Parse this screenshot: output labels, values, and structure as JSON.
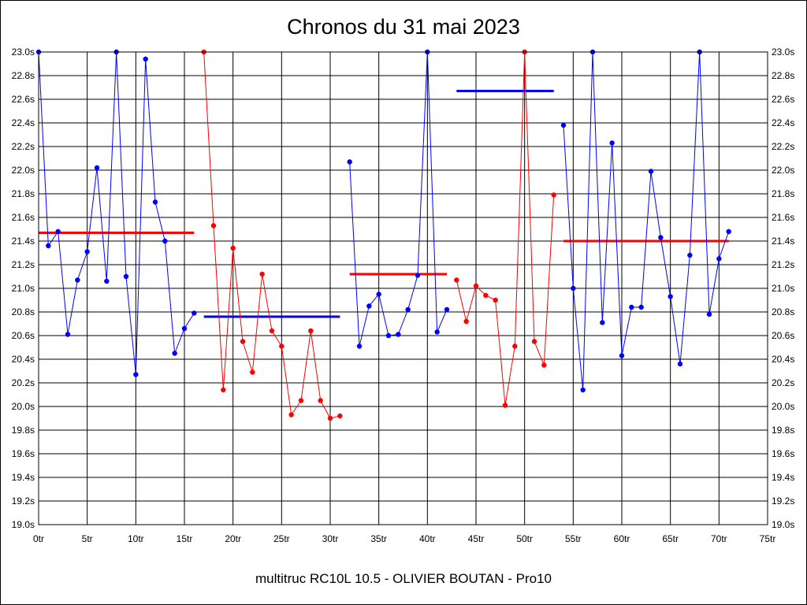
{
  "chart_data": {
    "type": "line",
    "title": "Chronos du 31 mai 2023",
    "footer": "multitruc RC10L 10.5 - OLIVIER BOUTAN - Pro10",
    "x_tick_labels": [
      "0tr",
      "5tr",
      "10tr",
      "15tr",
      "20tr",
      "25tr",
      "30tr",
      "35tr",
      "40tr",
      "45tr",
      "50tr",
      "55tr",
      "60tr",
      "65tr",
      "70tr",
      "75tr"
    ],
    "x_ticks": [
      0,
      5,
      10,
      15,
      20,
      25,
      30,
      35,
      40,
      45,
      50,
      55,
      60,
      65,
      70,
      75
    ],
    "y_tick_labels": [
      "19.0s",
      "19.2s",
      "19.4s",
      "19.6s",
      "19.8s",
      "20.0s",
      "20.2s",
      "20.4s",
      "20.6s",
      "20.8s",
      "21.0s",
      "21.2s",
      "21.4s",
      "21.6s",
      "21.8s",
      "22.0s",
      "22.2s",
      "22.4s",
      "22.6s",
      "22.8s",
      "23.0s"
    ],
    "y_ticks": [
      19.0,
      19.2,
      19.4,
      19.6,
      19.8,
      20.0,
      20.2,
      20.4,
      20.6,
      20.8,
      21.0,
      21.2,
      21.4,
      21.6,
      21.8,
      22.0,
      22.2,
      22.4,
      22.6,
      22.8,
      23.0
    ],
    "xlim": [
      0,
      75
    ],
    "ylim": [
      19.0,
      23.0
    ],
    "grid": true,
    "series": [
      {
        "color": "#0000ff",
        "x": [
          0,
          1,
          2,
          3,
          4,
          5,
          6,
          7,
          8,
          9,
          10,
          11,
          12,
          13,
          14,
          15,
          16
        ],
        "y": [
          23.0,
          21.36,
          21.48,
          20.61,
          21.07,
          21.31,
          22.02,
          21.06,
          23.0,
          21.1,
          20.27,
          22.94,
          21.73,
          21.4,
          20.45,
          20.66,
          20.79
        ],
        "mean": 21.47,
        "mean_color": "#ff0000"
      },
      {
        "color": "#ff0000",
        "x": [
          17,
          18,
          19,
          20,
          21,
          22,
          23,
          24,
          25,
          26,
          27,
          28,
          29,
          30,
          31
        ],
        "y": [
          23.0,
          21.53,
          20.14,
          21.34,
          20.55,
          20.29,
          21.12,
          20.64,
          20.51,
          19.93,
          20.05,
          20.64,
          20.05,
          19.9,
          19.92
        ],
        "mean": 20.76,
        "mean_color": "#0000ff"
      },
      {
        "color": "#0000ff",
        "x": [
          32,
          33,
          34,
          35,
          36,
          37,
          38,
          39,
          40,
          41,
          42
        ],
        "y": [
          22.07,
          20.51,
          20.85,
          20.95,
          20.6,
          20.61,
          20.82,
          21.11,
          23.0,
          20.63,
          20.82
        ],
        "mean": 21.12,
        "mean_color": "#ff0000"
      },
      {
        "color": "#ff0000",
        "x": [
          43,
          44,
          45,
          46,
          47,
          48,
          49,
          50,
          51,
          52,
          53
        ],
        "y": [
          21.07,
          20.72,
          21.02,
          20.94,
          20.9,
          20.01,
          20.51,
          23.0,
          20.55,
          20.35,
          21.79
        ],
        "mean": 22.67,
        "mean_color": "#0000ff"
      },
      {
        "color": "#0000ff",
        "x": [
          54,
          55,
          56,
          57,
          58,
          59,
          60,
          61,
          62,
          63,
          64,
          65,
          66,
          67,
          68,
          69,
          70,
          71
        ],
        "y": [
          22.38,
          21.0,
          20.14,
          23.0,
          20.71,
          22.23,
          20.43,
          20.84,
          20.84,
          21.99,
          21.43,
          20.93,
          20.36,
          21.28,
          23.0,
          20.78,
          21.25,
          21.48
        ],
        "mean": 21.4,
        "mean_color": "#ff0000"
      }
    ]
  }
}
